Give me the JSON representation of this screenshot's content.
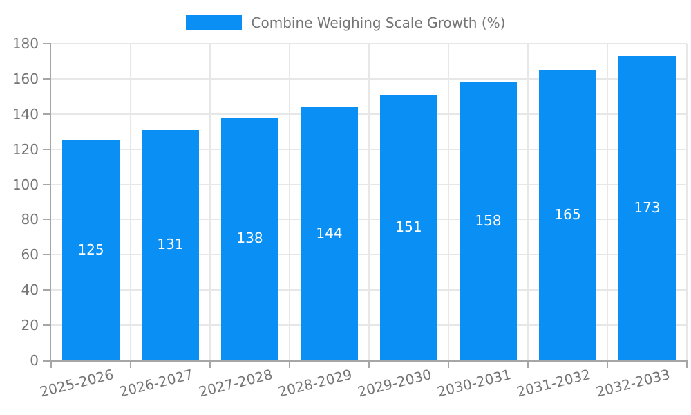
{
  "legend": {
    "items": [
      {
        "label": "Combine Weighing Scale Growth (%)",
        "color": "#0a8ff5"
      }
    ]
  },
  "colors": {
    "bar": "#0a8ff5",
    "grid": "#e7e7e7",
    "axis": "#a6a6a6",
    "text": "#757575",
    "value_label": "#ffffff",
    "background": "#ffffff"
  },
  "chart_data": {
    "type": "bar",
    "title": "",
    "xlabel": "",
    "ylabel": "",
    "series_name": "Combine Weighing Scale Growth (%)",
    "categories": [
      "2025-2026",
      "2026-2027",
      "2027-2028",
      "2028-2029",
      "2029-2030",
      "2030-2031",
      "2031-2032",
      "2032-2033"
    ],
    "values": [
      125,
      131,
      138,
      144,
      151,
      158,
      165,
      173
    ],
    "yticks": [
      0,
      20,
      40,
      60,
      80,
      100,
      120,
      140,
      160,
      180
    ],
    "ylim": [
      0,
      180
    ],
    "grid": true,
    "legend_position": "top-center",
    "value_label_position": "inside-center",
    "xtick_label_rotation_deg": -14
  }
}
